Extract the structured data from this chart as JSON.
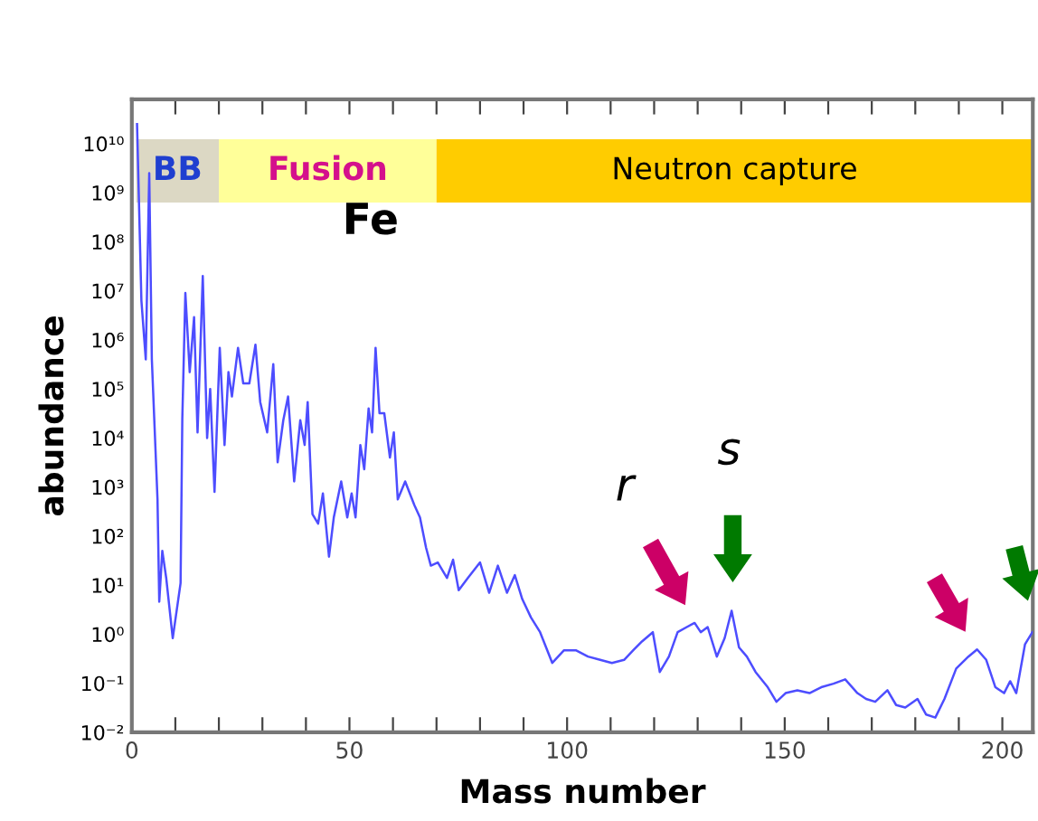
{
  "chart_data": {
    "type": "line",
    "xlabel": "Mass number",
    "ylabel": "abundance",
    "log": "y",
    "grid": false,
    "marker": "none",
    "line_style": "solid",
    "xlim": [
      0,
      207
    ],
    "xticks": [
      0,
      {
        "value": 10,
        "label": null
      },
      {
        "value": 20,
        "label": null
      },
      {
        "value": 30,
        "label": null
      },
      {
        "value": 40,
        "label": null
      },
      50,
      {
        "value": 60,
        "label": null
      },
      {
        "value": 70,
        "label": null
      },
      {
        "value": 80,
        "label": null
      },
      {
        "value": 90,
        "label": null
      },
      100,
      {
        "value": 110,
        "label": null
      },
      {
        "value": 120,
        "label": null
      },
      {
        "value": 130,
        "label": null
      },
      {
        "value": 140,
        "label": null
      },
      150,
      {
        "value": 160,
        "label": null
      },
      {
        "value": 170,
        "label": null
      },
      {
        "value": 180,
        "label": null
      },
      {
        "value": 190,
        "label": null
      },
      200
    ],
    "ylim": [
      0.01,
      80000000000
    ],
    "yticks": [
      {
        "value": 0.01,
        "label": "10⁻²"
      },
      {
        "value": 0.1,
        "label": "10⁻¹"
      },
      {
        "value": 1,
        "label": "10⁰"
      },
      {
        "value": 10,
        "label": "10¹"
      },
      {
        "value": 100,
        "label": "10²"
      },
      {
        "value": 1000,
        "label": "10³"
      },
      {
        "value": 10000,
        "label": "10⁴"
      },
      {
        "value": 100000,
        "label": "10⁵"
      },
      {
        "value": 1000000,
        "label": "10⁶"
      },
      {
        "value": 10000000,
        "label": "10⁷"
      },
      {
        "value": 100000000,
        "label": "10⁸"
      },
      {
        "value": 1000000000,
        "label": "10⁹"
      },
      {
        "value": 10000000000,
        "label": "10¹⁰"
      }
    ],
    "bands": [
      {
        "axis": "x",
        "from": 1,
        "to": 20,
        "label": "BB",
        "color": "#dcd8c4"
      },
      {
        "axis": "x",
        "from": 20,
        "to": 70,
        "label": "Fusion",
        "color": "#ffff99"
      },
      {
        "axis": "x",
        "from": 70,
        "to": 207,
        "label": "Neutron capture",
        "color": "#ffcc00"
      }
    ],
    "annotations": [
      {
        "text": "Fe",
        "x": 56,
        "y": 690000
      },
      "r",
      "s"
    ],
    "series": [
      {
        "color": "#4d4dff",
        "x": [
          1.2,
          2.2,
          3.2,
          4.0,
          4.6,
          5.9,
          6.3,
          7.0,
          7.9,
          9.4,
          11.2,
          11.6,
          12.3,
          13.3,
          14.3,
          15.1,
          16.3,
          17.3,
          18.0,
          19.0,
          20.2,
          21.3,
          22.2,
          23.0,
          24.4,
          25.6,
          27.0,
          28.4,
          29.5,
          31.1,
          32.5,
          33.5,
          34.8,
          35.9,
          37.3,
          38.7,
          39.7,
          40.4,
          41.5,
          42.8,
          43.9,
          45.3,
          46.4,
          48.1,
          49.5,
          50.5,
          51.4,
          52.5,
          53.4,
          54.4,
          55.2,
          56.0,
          56.9,
          58.0,
          59.3,
          60.2,
          61.1,
          62.8,
          64.9,
          66.2,
          67.6,
          68.7,
          70.3,
          72.4,
          73.8,
          75.1,
          77.2,
          80.0,
          82.1,
          84.1,
          86.2,
          88.0,
          89.7,
          91.7,
          93.8,
          96.6,
          99.3,
          102,
          104.8,
          107.6,
          110.3,
          113.1,
          115.2,
          117.2,
          119.7,
          121.3,
          123.4,
          125.4,
          127.5,
          129.3,
          130.7,
          132.3,
          134.4,
          136.2,
          137.8,
          139.5,
          141.3,
          143.3,
          146.1,
          148.1,
          150.2,
          152.9,
          155.7,
          158.4,
          161.2,
          163.9,
          166.7,
          168.7,
          170.8,
          173.6,
          175.6,
          177.7,
          180.5,
          182.5,
          184.6,
          186.7,
          189.4,
          192.2,
          194.2,
          196.3,
          198.4,
          200.4,
          201.8,
          203.2,
          205.2,
          206.9
        ],
        "values": [
          25000000000,
          6300000,
          400000,
          2500000000,
          400000,
          560,
          4.6,
          50,
          14,
          0.83,
          11,
          25000,
          9000000,
          220000,
          2900000,
          13000,
          20000000,
          10000,
          100000,
          800,
          690000,
          7200,
          220000,
          70000,
          690000,
          130000,
          130000,
          800000,
          54000,
          13000,
          320000,
          3200,
          23000,
          70000,
          1300,
          23000,
          7200,
          54000,
          280,
          180,
          740,
          38,
          240,
          1300,
          240,
          740,
          240,
          7200,
          2300,
          40000,
          13000,
          690000,
          32000,
          32000,
          4000,
          13000,
          560,
          1300,
          430,
          240,
          58,
          25,
          29,
          14,
          33,
          7.9,
          14,
          29,
          7,
          25,
          7,
          16,
          5.2,
          2.2,
          1.1,
          0.26,
          0.47,
          0.47,
          0.35,
          0.3,
          0.26,
          0.3,
          0.47,
          0.71,
          1.1,
          0.17,
          0.35,
          1.1,
          1.4,
          1.7,
          1.1,
          1.4,
          0.35,
          0.83,
          3,
          0.54,
          0.35,
          0.17,
          0.083,
          0.042,
          0.063,
          0.072,
          0.063,
          0.083,
          0.098,
          0.12,
          0.063,
          0.048,
          0.042,
          0.072,
          0.036,
          0.032,
          0.048,
          0.023,
          0.02,
          0.048,
          0.2,
          0.35,
          0.49,
          0.3,
          0.083,
          0.063,
          0.11,
          0.063,
          0.62,
          1.1
        ]
      }
    ]
  }
}
